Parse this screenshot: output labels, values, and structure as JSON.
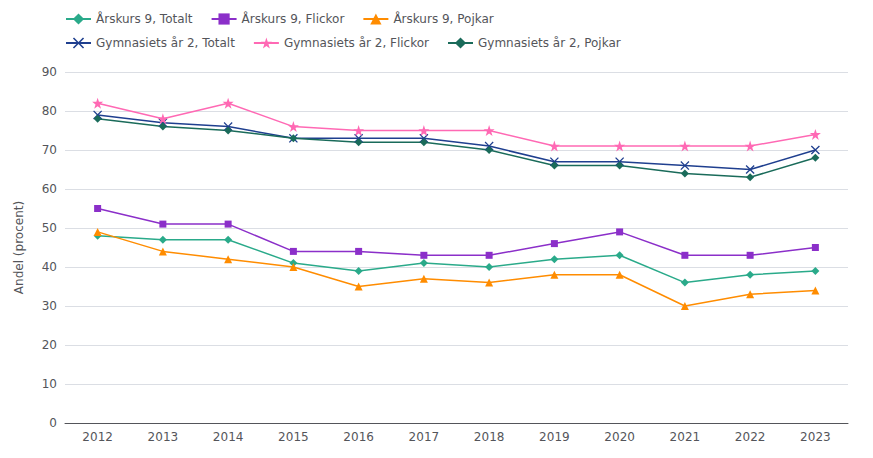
{
  "chart_data": {
    "type": "line",
    "categories": [
      "2012",
      "2013",
      "2014",
      "2015",
      "2016",
      "2017",
      "2018",
      "2019",
      "2020",
      "2021",
      "2022",
      "2023"
    ],
    "series": [
      {
        "name": "Årskurs 9, Totalt",
        "color": "#2aaa8a",
        "marker": "diamond",
        "values": [
          48,
          47,
          47,
          41,
          39,
          41,
          40,
          42,
          43,
          36,
          38,
          39
        ]
      },
      {
        "name": "Årskurs 9, Flickor",
        "color": "#8B2FC9",
        "marker": "square",
        "values": [
          55,
          51,
          51,
          44,
          44,
          43,
          43,
          46,
          49,
          43,
          43,
          45
        ]
      },
      {
        "name": "Årskurs 9, Pojkar",
        "color": "#FF8C00",
        "marker": "triangle",
        "values": [
          49,
          44,
          42,
          40,
          35,
          37,
          36,
          38,
          38,
          30,
          33,
          34
        ]
      },
      {
        "name": "Gymnasiets år 2, Totalt",
        "color": "#1F3F8F",
        "marker": "x",
        "values": [
          79,
          77,
          76,
          73,
          73,
          73,
          71,
          67,
          67,
          66,
          65,
          70
        ]
      },
      {
        "name": "Gymnasiets år 2, Flickor",
        "color": "#FF69B4",
        "marker": "star",
        "values": [
          82,
          78,
          82,
          76,
          75,
          75,
          75,
          71,
          71,
          71,
          71,
          74
        ]
      },
      {
        "name": "Gymnasiets år 2, Pojkar",
        "color": "#1A6B5A",
        "marker": "diamond",
        "values": [
          78,
          76,
          75,
          73,
          72,
          72,
          70,
          66,
          66,
          64,
          63,
          68
        ]
      }
    ],
    "ylabel": "Andel (procent)",
    "ylim": [
      0,
      90
    ],
    "yticks": [
      0,
      10,
      20,
      30,
      40,
      50,
      60,
      70,
      80,
      90
    ],
    "grid": true,
    "legend": "top"
  }
}
